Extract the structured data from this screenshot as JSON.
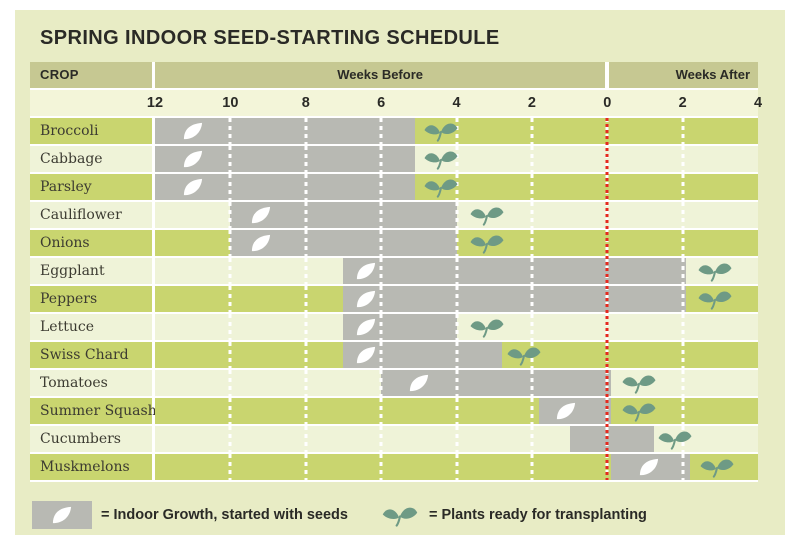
{
  "title": "SPRING INDOOR SEED-STARTING SCHEDULE",
  "header": {
    "crop": "CROP",
    "weeks_before": "Weeks Before",
    "weeks_after": "Weeks After"
  },
  "axis": {
    "week_range": [
      -12,
      4
    ],
    "frost_line_week": 0,
    "gridline_weeks": [
      -10,
      -8,
      -6,
      -4,
      -2,
      0,
      2
    ],
    "ticks": [
      {
        "week": -12,
        "label": "12"
      },
      {
        "week": -10,
        "label": "10"
      },
      {
        "week": -8,
        "label": "8"
      },
      {
        "week": -6,
        "label": "6"
      },
      {
        "week": -4,
        "label": "4"
      },
      {
        "week": -2,
        "label": "2"
      },
      {
        "week": 0,
        "label": "0"
      },
      {
        "week": 2,
        "label": "2"
      },
      {
        "week": 4,
        "label": "4"
      }
    ]
  },
  "chart_data": {
    "type": "gantt",
    "title": "Spring Indoor Seed-Starting Schedule",
    "unit": "weeks relative to last frost (negative = weeks before, positive = weeks after)",
    "rows": [
      {
        "crop": "Broccoli",
        "row_shade": "green",
        "bar_start_week": -12,
        "bar_end_week": -5.1,
        "seed_icon_week": -11,
        "sprout_icon_week": -4.4
      },
      {
        "crop": "Cabbage",
        "row_shade": "light",
        "bar_start_week": -12,
        "bar_end_week": -5.1,
        "seed_icon_week": -11,
        "sprout_icon_week": -4.4
      },
      {
        "crop": "Parsley",
        "row_shade": "green",
        "bar_start_week": -12,
        "bar_end_week": -5.1,
        "seed_icon_week": -11,
        "sprout_icon_week": -4.4
      },
      {
        "crop": "Cauliflower",
        "row_shade": "light",
        "bar_start_week": -10,
        "bar_end_week": -4,
        "seed_icon_week": -9.2,
        "sprout_icon_week": -3.2
      },
      {
        "crop": "Onions",
        "row_shade": "green",
        "bar_start_week": -10,
        "bar_end_week": -4,
        "seed_icon_week": -9.2,
        "sprout_icon_week": -3.2
      },
      {
        "crop": "Eggplant",
        "row_shade": "light",
        "bar_start_week": -7,
        "bar_end_week": 2.1,
        "seed_icon_week": -6.4,
        "sprout_icon_week": 2.85
      },
      {
        "crop": "Peppers",
        "row_shade": "green",
        "bar_start_week": -7,
        "bar_end_week": 2.1,
        "seed_icon_week": -6.4,
        "sprout_icon_week": 2.85
      },
      {
        "crop": "Lettuce",
        "row_shade": "light",
        "bar_start_week": -7,
        "bar_end_week": -4,
        "seed_icon_week": -6.4,
        "sprout_icon_week": -3.2
      },
      {
        "crop": "Swiss Chard",
        "row_shade": "green",
        "bar_start_week": -7,
        "bar_end_week": -2.8,
        "seed_icon_week": -6.4,
        "sprout_icon_week": -2.2
      },
      {
        "crop": "Tomatoes",
        "row_shade": "light",
        "bar_start_week": -6,
        "bar_end_week": 0.1,
        "seed_icon_week": -5,
        "sprout_icon_week": 0.85
      },
      {
        "crop": "Summer Squash",
        "row_shade": "green",
        "bar_start_week": -1.8,
        "bar_end_week": 0.1,
        "seed_icon_week": -1.1,
        "sprout_icon_week": 0.85
      },
      {
        "crop": "Cucumbers",
        "row_shade": "light",
        "bar_start_week": -1,
        "bar_end_week": 1.25,
        "seed_icon_week": null,
        "sprout_icon_week": 1.8
      },
      {
        "crop": "Muskmelons",
        "row_shade": "green",
        "bar_start_week": 0.1,
        "bar_end_week": 2.2,
        "seed_icon_week": 1.1,
        "sprout_icon_week": 2.9
      }
    ]
  },
  "legend": {
    "items": [
      {
        "icon": "seed",
        "label": "= Indoor Growth, started with seeds"
      },
      {
        "icon": "sprout",
        "label": "= Plants ready for transplanting"
      }
    ]
  },
  "colors": {
    "panel_bg": "#e8ecc5",
    "header_band": "#c6c892",
    "axis_bg": "#f3f5d9",
    "row_green": "#c9d56f",
    "row_light": "#eff3d8",
    "bar_gray": "#b8b9b3",
    "sprout_green": "#6e9a85",
    "frost_red": "#e5291f",
    "text_dark": "#2a2a26"
  }
}
